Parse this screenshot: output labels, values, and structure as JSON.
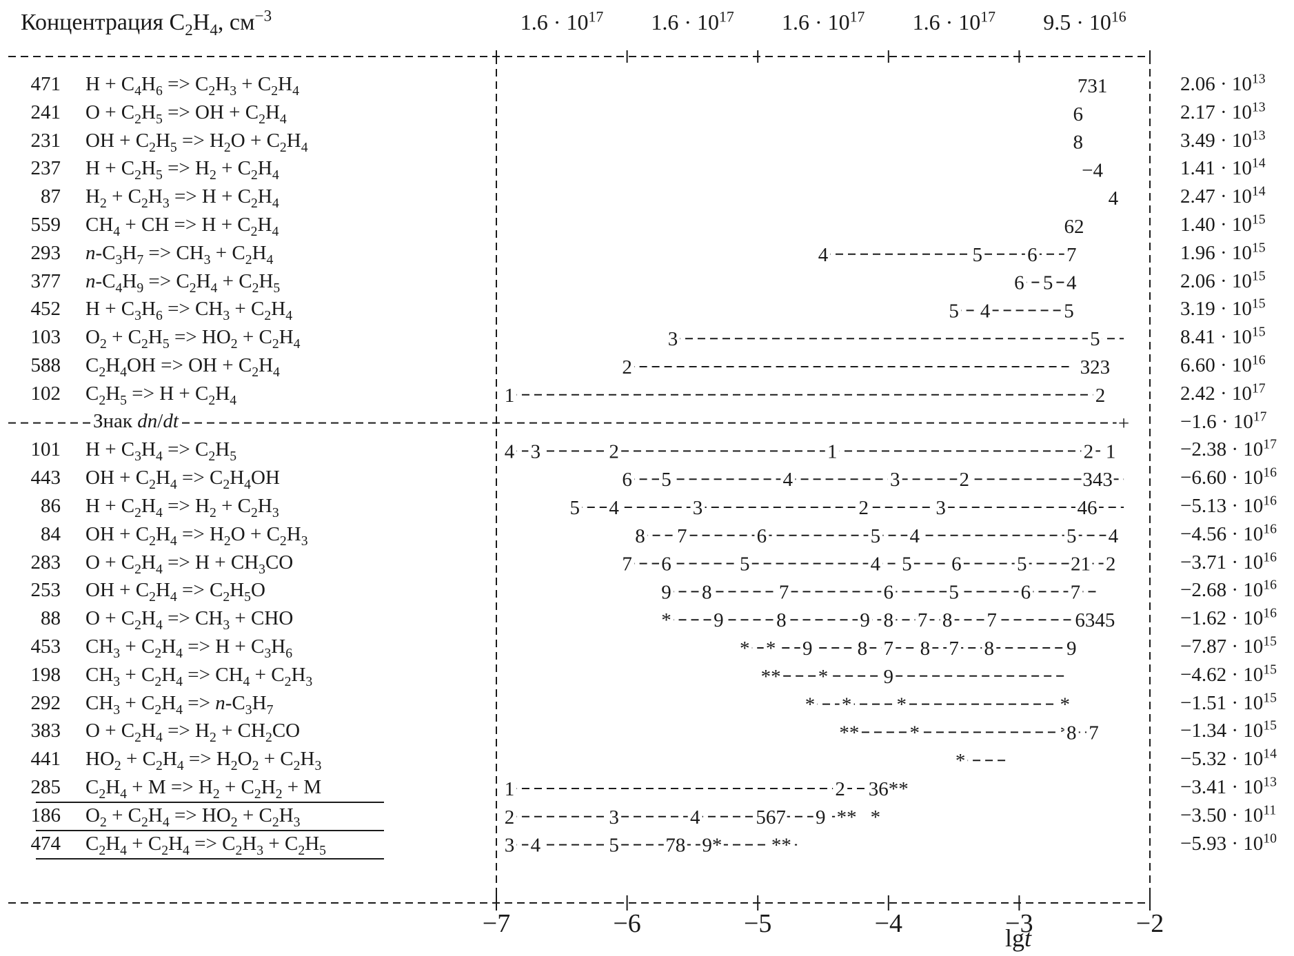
{
  "header": {
    "concentration_label": "Концентрация C<sub>2</sub>H<sub>4</sub>, см<sup>−3</sup>",
    "concentration_values": [
      "1.6 · 10<sup>17</sup>",
      "1.6 · 10<sup>17</sup>",
      "1.6 · 10<sup>17</sup>",
      "1.6 · 10<sup>17</sup>",
      "9.5 · 10<sup>16</sup>"
    ]
  },
  "axis": {
    "title": "lg<i>t</i>",
    "ticks": [
      "−7",
      "−6",
      "−5",
      "−4",
      "−3",
      "−2"
    ],
    "range": [
      -7,
      -2
    ]
  },
  "sign_label": "Знак <i>dn</i>/<i>dt</i>",
  "sign_row": {
    "marker": "+",
    "rate": "−1.6 · 10<sup>17</sup>"
  },
  "colors": {
    "ink": "#1a1a1a",
    "background": "#ffffff"
  },
  "production": [
    {
      "num": "471",
      "eq": "H + C<sub>4</sub>H<sub>6</sub> => C<sub>2</sub>H<sub>3</sub> + C<sub>2</sub>H<sub>4</sub>",
      "rate": "2.06 · 10<sup>13</sup>",
      "dash": [],
      "marks": [
        {
          "t": -2.44,
          "label": "731"
        }
      ]
    },
    {
      "num": "241",
      "eq": "O + C<sub>2</sub>H<sub>5</sub> => OH + C<sub>2</sub>H<sub>4</sub>",
      "rate": "2.17 · 10<sup>13</sup>",
      "dash": [],
      "marks": [
        {
          "t": -2.55,
          "label": "6"
        }
      ]
    },
    {
      "num": "231",
      "eq": "OH + C<sub>2</sub>H<sub>5</sub> => H<sub>2</sub>O + C<sub>2</sub>H<sub>4</sub>",
      "rate": "3.49 · 10<sup>13</sup>",
      "dash": [],
      "marks": [
        {
          "t": -2.55,
          "label": "8"
        }
      ]
    },
    {
      "num": "237",
      "eq": "H + C<sub>2</sub>H<sub>5</sub> => H<sub>2</sub> + C<sub>2</sub>H<sub>4</sub>",
      "rate": "1.41 · 10<sup>14</sup>",
      "dash": [],
      "marks": [
        {
          "t": -2.44,
          "label": "−4"
        }
      ]
    },
    {
      "num": "87",
      "eq": "H<sub>2</sub> + C<sub>2</sub>H<sub>3</sub> => H + C<sub>2</sub>H<sub>4</sub>",
      "rate": "2.47 · 10<sup>14</sup>",
      "dash": [],
      "marks": [
        {
          "t": -2.28,
          "label": "4"
        }
      ]
    },
    {
      "num": "559",
      "eq": "CH<sub>4</sub> + CH => H + C<sub>2</sub>H<sub>4</sub>",
      "rate": "1.40 · 10<sup>15</sup>",
      "dash": [],
      "marks": [
        {
          "t": -2.58,
          "label": "62"
        }
      ]
    },
    {
      "num": "293",
      "eq": "<i>n</i>-C<sub>3</sub>H<sub>7</sub> => CH<sub>3</sub> + C<sub>2</sub>H<sub>4</sub>",
      "rate": "1.96 · 10<sup>15</sup>",
      "dash": [
        -4.5,
        -2.6
      ],
      "marks": [
        {
          "t": -4.5,
          "label": "4"
        },
        {
          "t": -3.32,
          "label": "5"
        },
        {
          "t": -2.9,
          "label": "6"
        },
        {
          "t": -2.6,
          "label": "7"
        }
      ]
    },
    {
      "num": "377",
      "eq": "<i>n</i>-C<sub>4</sub>H<sub>9</sub> => C<sub>2</sub>H<sub>4</sub> + C<sub>2</sub>H<sub>5</sub>",
      "rate": "2.06 · 10<sup>15</sup>",
      "dash": [
        -3.0,
        -2.6
      ],
      "marks": [
        {
          "t": -3.0,
          "label": "6"
        },
        {
          "t": -2.78,
          "label": "5"
        },
        {
          "t": -2.6,
          "label": "4"
        }
      ]
    },
    {
      "num": "452",
      "eq": "H + C<sub>3</sub>H<sub>6</sub> => CH<sub>3</sub> + C<sub>2</sub>H<sub>4</sub>",
      "rate": "3.19 · 10<sup>15</sup>",
      "dash": [
        -3.5,
        -2.62
      ],
      "marks": [
        {
          "t": -3.5,
          "label": "5"
        },
        {
          "t": -3.26,
          "label": "4"
        },
        {
          "t": -2.62,
          "label": "5"
        }
      ]
    },
    {
      "num": "103",
      "eq": "O<sub>2</sub> + C<sub>2</sub>H<sub>5</sub> => HO<sub>2</sub> + C<sub>2</sub>H<sub>4</sub>",
      "rate": "8.41 · 10<sup>15</sup>",
      "dash": [
        -5.65,
        -2.2
      ],
      "marks": [
        {
          "t": -5.65,
          "label": "3"
        },
        {
          "t": -2.42,
          "label": "5"
        }
      ]
    },
    {
      "num": "588",
      "eq": "C<sub>2</sub>H<sub>4</sub>OH => OH + C<sub>2</sub>H<sub>4</sub>",
      "rate": "6.60 · 10<sup>16</sup>",
      "dash": [
        -6.0,
        -2.6
      ],
      "marks": [
        {
          "t": -6.0,
          "label": "2"
        },
        {
          "t": -2.42,
          "label": "323"
        }
      ]
    },
    {
      "num": "102",
      "eq": "C<sub>2</sub>H<sub>5</sub> => H + C<sub>2</sub>H<sub>4</sub>",
      "rate": "2.42 · 10<sup>17</sup>",
      "dash": [
        -6.9,
        -2.42
      ],
      "marks": [
        {
          "t": -6.9,
          "label": "1"
        },
        {
          "t": -2.38,
          "label": "2"
        }
      ]
    }
  ],
  "consumption": [
    {
      "num": "101",
      "eq": "H + C<sub>3</sub>H<sub>4</sub> => C<sub>2</sub>H<sub>5</sub>",
      "rate": "−2.38 · 10<sup>17</sup>",
      "dash": [
        -6.9,
        -2.3
      ],
      "marks": [
        {
          "t": -6.9,
          "label": "4"
        },
        {
          "t": -6.7,
          "label": "3"
        },
        {
          "t": -6.1,
          "label": "2"
        },
        {
          "t": -4.43,
          "label": "1"
        },
        {
          "t": -2.47,
          "label": "2"
        },
        {
          "t": -2.3,
          "label": "1"
        }
      ]
    },
    {
      "num": "443",
      "eq": "OH + C<sub>2</sub>H<sub>4</sub> => C<sub>2</sub>H<sub>4</sub>OH",
      "rate": "−6.60 · 10<sup>16</sup>",
      "dash": [
        -6.0,
        -2.2
      ],
      "marks": [
        {
          "t": -6.0,
          "label": "6"
        },
        {
          "t": -5.7,
          "label": "5"
        },
        {
          "t": -4.77,
          "label": "4"
        },
        {
          "t": -3.95,
          "label": "3"
        },
        {
          "t": -3.42,
          "label": "2"
        },
        {
          "t": -2.4,
          "label": "343"
        }
      ]
    },
    {
      "num": "86",
      "eq": "H + C<sub>2</sub>H<sub>4</sub> => H<sub>2</sub> + C<sub>2</sub>H<sub>3</sub>",
      "rate": "−5.13 · 10<sup>16</sup>",
      "dash": [
        -6.4,
        -2.2
      ],
      "marks": [
        {
          "t": -6.4,
          "label": "5"
        },
        {
          "t": -6.1,
          "label": "4"
        },
        {
          "t": -5.46,
          "label": "3"
        },
        {
          "t": -4.19,
          "label": "2"
        },
        {
          "t": -3.6,
          "label": "3"
        },
        {
          "t": -2.48,
          "label": "46"
        }
      ]
    },
    {
      "num": "84",
      "eq": "OH + C<sub>2</sub>H<sub>4</sub> => H<sub>2</sub>O + C<sub>2</sub>H<sub>3</sub>",
      "rate": "−4.56 · 10<sup>16</sup>",
      "dash": [
        -5.9,
        -2.3
      ],
      "marks": [
        {
          "t": -5.9,
          "label": "8"
        },
        {
          "t": -5.58,
          "label": "7"
        },
        {
          "t": -4.97,
          "label": "6"
        },
        {
          "t": -4.1,
          "label": "5"
        },
        {
          "t": -3.8,
          "label": "4"
        },
        {
          "t": -2.6,
          "label": "5"
        },
        {
          "t": -2.28,
          "label": "4"
        }
      ]
    },
    {
      "num": "283",
      "eq": "O + C<sub>2</sub>H<sub>4</sub> => H + CH<sub>3</sub>CO",
      "rate": "−3.71 · 10<sup>16</sup>",
      "dash": [
        -6.0,
        -2.3
      ],
      "marks": [
        {
          "t": -6.0,
          "label": "7"
        },
        {
          "t": -5.7,
          "label": "6"
        },
        {
          "t": -5.1,
          "label": "5"
        },
        {
          "t": -4.1,
          "label": "4"
        },
        {
          "t": -3.86,
          "label": "5"
        },
        {
          "t": -3.48,
          "label": "6"
        },
        {
          "t": -2.98,
          "label": "5"
        },
        {
          "t": -2.53,
          "label": "21"
        },
        {
          "t": -2.3,
          "label": "2"
        }
      ]
    },
    {
      "num": "253",
      "eq": "OH + C<sub>2</sub>H<sub>4</sub> => C<sub>2</sub>H<sub>5</sub>O",
      "rate": "−2.68 · 10<sup>16</sup>",
      "dash": [
        -5.7,
        -2.4
      ],
      "marks": [
        {
          "t": -5.7,
          "label": "9"
        },
        {
          "t": -5.39,
          "label": "8"
        },
        {
          "t": -4.8,
          "label": "7"
        },
        {
          "t": -4.0,
          "label": "6"
        },
        {
          "t": -3.5,
          "label": "5"
        },
        {
          "t": -2.95,
          "label": "6"
        },
        {
          "t": -2.57,
          "label": "7"
        }
      ]
    },
    {
      "num": "88",
      "eq": "O + C<sub>2</sub>H<sub>4</sub> => CH<sub>3</sub> + CHO",
      "rate": "−1.62 · 10<sup>16</sup>",
      "dash": [
        -5.7,
        -2.6
      ],
      "marks": [
        {
          "t": -5.7,
          "label": "*"
        },
        {
          "t": -5.3,
          "label": "9"
        },
        {
          "t": -4.82,
          "label": "8"
        },
        {
          "t": -4.18,
          "label": "9"
        },
        {
          "t": -4.0,
          "label": "8"
        },
        {
          "t": -3.74,
          "label": "7"
        },
        {
          "t": -3.55,
          "label": "8"
        },
        {
          "t": -3.21,
          "label": "7"
        },
        {
          "t": -2.42,
          "label": "6345"
        }
      ]
    },
    {
      "num": "453",
      "eq": "CH<sub>3</sub> + C<sub>2</sub>H<sub>4</sub> => H + C<sub>3</sub>H<sub>6</sub>",
      "rate": "−7.87 · 10<sup>15</sup>",
      "dash": [
        -5.1,
        -2.6
      ],
      "marks": [
        {
          "t": -5.1,
          "label": "*"
        },
        {
          "t": -4.9,
          "label": "*"
        },
        {
          "t": -4.62,
          "label": "9"
        },
        {
          "t": -4.2,
          "label": "8"
        },
        {
          "t": -4.0,
          "label": "7"
        },
        {
          "t": -3.72,
          "label": "8"
        },
        {
          "t": -3.5,
          "label": "7"
        },
        {
          "t": -3.23,
          "label": "8"
        },
        {
          "t": -2.6,
          "label": "9"
        }
      ]
    },
    {
      "num": "198",
      "eq": "CH<sub>3</sub> + C<sub>2</sub>H<sub>4</sub> => CH<sub>4</sub> + C<sub>2</sub>H<sub>3</sub>",
      "rate": "−4.62 · 10<sup>15</sup>",
      "dash": [
        -4.9,
        -2.65
      ],
      "marks": [
        {
          "t": -4.9,
          "label": "**"
        },
        {
          "t": -4.5,
          "label": "*"
        },
        {
          "t": -4.0,
          "label": "9"
        }
      ]
    },
    {
      "num": "292",
      "eq": "CH<sub>3</sub> + C<sub>2</sub>H<sub>4</sub> => <i>n</i>-C<sub>3</sub>H<sub>7</sub>",
      "rate": "−1.51 · 10<sup>15</sup>",
      "dash": [
        -4.6,
        -2.65
      ],
      "marks": [
        {
          "t": -4.6,
          "label": "*"
        },
        {
          "t": -4.32,
          "label": "*"
        },
        {
          "t": -3.9,
          "label": "*"
        },
        {
          "t": -2.65,
          "label": "*"
        }
      ]
    },
    {
      "num": "383",
      "eq": "O + C<sub>2</sub>H<sub>4</sub> => H<sub>2</sub> + CH<sub>2</sub>CO",
      "rate": "−1.34 · 10<sup>15</sup>",
      "dash": [
        -4.3,
        -2.4
      ],
      "marks": [
        {
          "t": -4.3,
          "label": "**"
        },
        {
          "t": -3.8,
          "label": "*"
        },
        {
          "t": -2.65,
          "label": "*"
        },
        {
          "t": -2.6,
          "label": "8"
        },
        {
          "t": -2.43,
          "label": "7"
        }
      ]
    },
    {
      "num": "441",
      "eq": "HO<sub>2</sub> + C<sub>2</sub>H<sub>4</sub> => H<sub>2</sub>O<sub>2</sub> + C<sub>2</sub>H<sub>3</sub>",
      "rate": "−5.32 · 10<sup>14</sup>",
      "dash": [
        -3.45,
        -3.1
      ],
      "marks": [
        {
          "t": -3.45,
          "label": "*"
        }
      ]
    },
    {
      "num": "285",
      "eq": "C<sub>2</sub>H<sub>4</sub> + M => H<sub>2</sub> + C<sub>2</sub>H<sub>2</sub> + M",
      "rate": "−3.41 · 10<sup>13</sup>",
      "underline": true,
      "dash": [
        -6.9,
        -4.1
      ],
      "marks": [
        {
          "t": -6.9,
          "label": "1"
        },
        {
          "t": -4.37,
          "label": "2"
        },
        {
          "t": -4.0,
          "label": "36**"
        }
      ]
    },
    {
      "num": "186",
      "eq": "O<sub>2</sub> + C<sub>2</sub>H<sub>4</sub> => HO<sub>2</sub> + C<sub>2</sub>H<sub>3</sub>",
      "rate": "−3.50 · 10<sup>11</sup>",
      "underline": true,
      "dash": [
        -6.9,
        -4.3
      ],
      "marks": [
        {
          "t": -6.9,
          "label": "2"
        },
        {
          "t": -6.1,
          "label": "3"
        },
        {
          "t": -5.48,
          "label": "4"
        },
        {
          "t": -4.9,
          "label": "567"
        },
        {
          "t": -4.52,
          "label": "9"
        },
        {
          "t": -4.32,
          "label": "**"
        },
        {
          "t": -4.1,
          "label": "*"
        }
      ]
    },
    {
      "num": "474",
      "eq": "C<sub>2</sub>H<sub>4</sub> + C<sub>2</sub>H<sub>4</sub> => C<sub>2</sub>H<sub>3</sub> + C<sub>2</sub>H<sub>5</sub>",
      "rate": "−5.93 · 10<sup>10</sup>",
      "underline": true,
      "dash": [
        -6.9,
        -4.7
      ],
      "marks": [
        {
          "t": -6.9,
          "label": "3"
        },
        {
          "t": -6.7,
          "label": "4"
        },
        {
          "t": -6.1,
          "label": "5"
        },
        {
          "t": -5.63,
          "label": "78"
        },
        {
          "t": -5.35,
          "label": "9*"
        },
        {
          "t": -4.82,
          "label": "**"
        }
      ]
    }
  ]
}
